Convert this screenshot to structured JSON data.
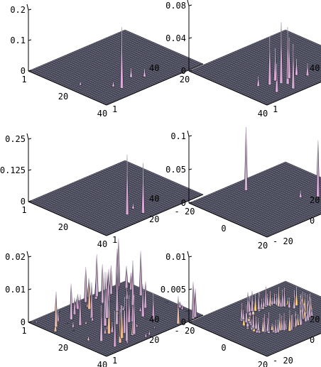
{
  "chart_data": [
    {
      "type": "surface3d",
      "zlim": [
        0,
        0.2
      ],
      "z_ticks": [
        "0",
        "0.1",
        "0.2"
      ],
      "x_ticks": [
        "1",
        "20",
        "40"
      ],
      "y_ticks": [
        "1",
        "40"
      ],
      "x_range": [
        1,
        40
      ],
      "y_range": [
        1,
        40
      ],
      "peaks": [
        {
          "x": 34,
          "y": 29,
          "z": 0.2
        },
        {
          "x": 30,
          "y": 22,
          "z": 0.03
        },
        {
          "x": 33,
          "y": 19,
          "z": 0.025
        },
        {
          "x": 31,
          "y": 30,
          "z": 0.015
        },
        {
          "x": 22,
          "y": 36,
          "z": 0.01
        }
      ]
    },
    {
      "type": "surface3d",
      "zlim": [
        0,
        0.08
      ],
      "z_ticks": [
        "0",
        "0.04",
        "0.08"
      ],
      "x_ticks": [
        "20",
        "40"
      ],
      "y_ticks": [
        "1",
        "40"
      ],
      "x_range": [
        1,
        40
      ],
      "y_range": [
        1,
        40
      ],
      "peaks": [
        {
          "x": 31,
          "y": 27,
          "z": 0.075
        },
        {
          "x": 33,
          "y": 26,
          "z": 0.07
        },
        {
          "x": 29,
          "y": 30,
          "z": 0.06
        },
        {
          "x": 37,
          "y": 27,
          "z": 0.055
        },
        {
          "x": 30,
          "y": 23,
          "z": 0.05
        },
        {
          "x": 28,
          "y": 27,
          "z": 0.04
        },
        {
          "x": 35,
          "y": 32,
          "z": 0.035
        },
        {
          "x": 30,
          "y": 20,
          "z": 0.02
        },
        {
          "x": 33,
          "y": 18,
          "z": 0.015
        },
        {
          "x": 27,
          "y": 33,
          "z": 0.012
        }
      ]
    },
    {
      "type": "surface3d",
      "zlim": [
        0,
        0.25
      ],
      "z_ticks": [
        "0",
        "0.125",
        "0.25"
      ],
      "x_ticks": [
        "1",
        "20",
        "40"
      ],
      "y_ticks": [
        "1",
        "20",
        "40"
      ],
      "x_range": [
        1,
        40
      ],
      "y_range": [
        1,
        40
      ],
      "peaks": [
        {
          "x": 33,
          "y": 26,
          "z": 0.24
        },
        {
          "x": 36,
          "y": 22,
          "z": 0.2
        },
        {
          "x": 31,
          "y": 22,
          "z": 0.02
        }
      ]
    },
    {
      "type": "surface3d",
      "zlim": [
        0,
        0.1
      ],
      "z_ticks": [
        "0",
        "0.05",
        "0.1"
      ],
      "x_ticks": [
        "- 20",
        "0",
        "20"
      ],
      "y_ticks": [
        "- 20",
        "0",
        "20"
      ],
      "x_range": [
        -20,
        20
      ],
      "y_range": [
        -20,
        20
      ],
      "peaks": [
        {
          "x": -13,
          "y": 2,
          "z": 0.095
        },
        {
          "x": 9,
          "y": -10,
          "z": 0.085
        },
        {
          "x": 5,
          "y": -6,
          "z": 0.01
        }
      ]
    },
    {
      "type": "surface3d",
      "zlim": [
        0,
        0.02
      ],
      "z_ticks": [
        "0",
        "0.01",
        "0.02"
      ],
      "x_ticks": [
        "1",
        "20",
        "40"
      ],
      "y_ticks": [
        "1",
        "20",
        "40"
      ],
      "x_range": [
        1,
        40
      ],
      "y_range": [
        1,
        40
      ],
      "noise": {
        "count": 70,
        "max_z": 0.016
      },
      "peaks": [
        {
          "x": 22,
          "y": 26,
          "z": 0.0165
        },
        {
          "x": 18,
          "y": 22,
          "z": 0.014
        },
        {
          "x": 3,
          "y": 14,
          "z": 0.013
        },
        {
          "x": 34,
          "y": 24,
          "z": 0.012
        },
        {
          "x": 10,
          "y": 30,
          "z": 0.011
        },
        {
          "x": 30,
          "y": 34,
          "z": 0.011
        },
        {
          "x": 26,
          "y": 14,
          "z": 0.01
        }
      ]
    },
    {
      "type": "surface3d",
      "zlim": [
        0,
        0.01
      ],
      "z_ticks": [
        "0",
        "0.005",
        "0.01"
      ],
      "x_ticks": [
        "- 20",
        "0",
        "20"
      ],
      "y_ticks": [
        "- 20",
        "0",
        "20"
      ],
      "x_range": [
        -20,
        20
      ],
      "y_range": [
        -20,
        20
      ],
      "ring": {
        "radius": 10,
        "z": 0.0025
      }
    }
  ]
}
